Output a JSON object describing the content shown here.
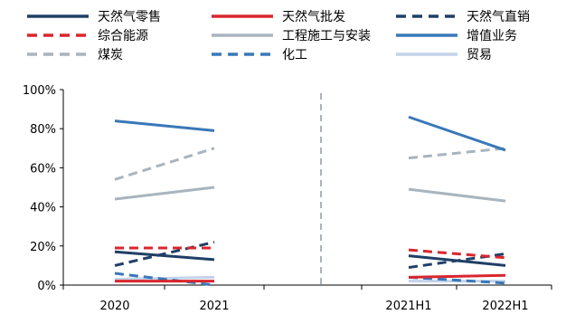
{
  "chart_data": {
    "type": "line",
    "categories": [
      "2020",
      "2021",
      "2021H1",
      "2022H1"
    ],
    "ylim": [
      0,
      100
    ],
    "yticks": [
      "0%",
      "20%",
      "40%",
      "60%",
      "80%",
      "100%"
    ],
    "legend_position": "top",
    "divider": "dashed vertical line between 2021 and 2021H1",
    "series": [
      {
        "name": "天然气零售",
        "color": "#1f3f66",
        "dash": "solid",
        "values": [
          17,
          13,
          15,
          10
        ]
      },
      {
        "name": "天然气批发",
        "color": "#d9262e",
        "dash": "solid",
        "values": [
          2,
          2,
          4,
          5
        ]
      },
      {
        "name": "天然气直销",
        "color": "#1f3f66",
        "dash": "dashed",
        "values": [
          10,
          22,
          9,
          16
        ]
      },
      {
        "name": "综合能源",
        "color": "#d9262e",
        "dash": "dashed",
        "values": [
          19,
          19,
          18,
          14
        ]
      },
      {
        "name": "工程施工与安装",
        "color": "#a9b4be",
        "dash": "solid",
        "values": [
          44,
          50,
          49,
          43
        ]
      },
      {
        "name": "增值业务",
        "color": "#3a78b8",
        "dash": "solid",
        "values": [
          84,
          79,
          86,
          69
        ]
      },
      {
        "name": "煤炭",
        "color": "#a9b4be",
        "dash": "dashed",
        "values": [
          54,
          70,
          65,
          70
        ]
      },
      {
        "name": "化工",
        "color": "#3a78b8",
        "dash": "dashed",
        "values": [
          6,
          0,
          4,
          1
        ]
      },
      {
        "name": "贸易",
        "color": "#c3d3ea",
        "dash": "solid",
        "values": [
          3,
          4,
          2,
          2
        ]
      }
    ]
  }
}
